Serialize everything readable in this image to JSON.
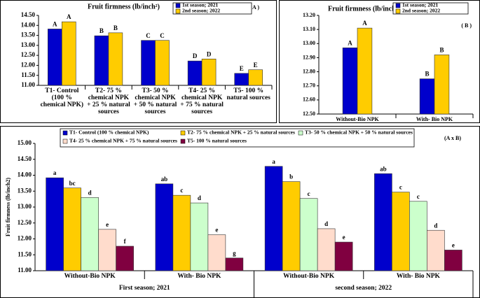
{
  "chart_data": [
    {
      "type": "bar",
      "title": "Fruit firmness (lb/inch²)",
      "panel_label": "( A )",
      "categories": [
        "T1- Control (100 % chemical NPK)",
        "T2- 75 % chemical NPK + 25 % natural sources",
        "T3- 50 % chemical NPK + 50 % natural sources",
        "T4- 25 % chemical NPK + 75 % natural sources",
        "T5- 100 % natural sources"
      ],
      "series": [
        {
          "name": "1st season; 2021",
          "color": "#0000cc",
          "values": [
            13.82,
            13.48,
            13.25,
            12.22,
            11.6
          ],
          "letters": [
            "A",
            "B",
            "C",
            "D",
            "E"
          ]
        },
        {
          "name": "2nd season; 2022",
          "color": "#ffcc00",
          "values": [
            14.18,
            13.63,
            13.25,
            12.32,
            11.78
          ],
          "letters": [
            "A",
            "B",
            "C",
            "D",
            "E"
          ]
        }
      ],
      "ylim": [
        11,
        14.5
      ],
      "yticks": [
        {
          "value": 11,
          "label": "11.00"
        },
        {
          "value": 11.5,
          "label": "11.50"
        },
        {
          "value": 12,
          "label": "12.00"
        },
        {
          "value": 12.5,
          "label": "12.50"
        },
        {
          "value": 13,
          "label": "13.00"
        },
        {
          "value": 13.5,
          "label": "13.50"
        },
        {
          "value": 14,
          "label": "14.00"
        },
        {
          "value": 14.5,
          "label": "14.50"
        }
      ]
    },
    {
      "type": "bar",
      "title": "Fruit firmness (lb/inch²)",
      "panel_label": "( B )",
      "categories": [
        "Without-Bio NPK",
        "With- Bio NPK"
      ],
      "series": [
        {
          "name": "1st season; 2021",
          "color": "#0000cc",
          "values": [
            12.97,
            12.75
          ],
          "letters": [
            "A",
            "B"
          ]
        },
        {
          "name": "2nd season; 2022",
          "color": "#ffcc00",
          "values": [
            13.11,
            12.92
          ],
          "letters": [
            "A",
            "B"
          ]
        }
      ],
      "ylim": [
        12.5,
        13.2
      ],
      "yticks": [
        {
          "value": 12.5,
          "label": "12.50"
        },
        {
          "value": 12.6,
          "label": "12.60"
        },
        {
          "value": 12.7,
          "label": "12.70"
        },
        {
          "value": 12.8,
          "label": "12.80"
        },
        {
          "value": 12.9,
          "label": "12.90"
        },
        {
          "value": 13,
          "label": "13.00"
        },
        {
          "value": 13.1,
          "label": "13.10"
        },
        {
          "value": 13.2,
          "label": "13.20"
        }
      ]
    },
    {
      "type": "bar",
      "panel_label": "(A x B)",
      "y_label": "Fruit firmness (lb/inch2)",
      "categories": [
        "Without-Bio NPK",
        "With- Bio NPK",
        "Without-Bio NPK",
        "With- Bio NPK"
      ],
      "groups": [
        "First season; 2021",
        "second season; 2022"
      ],
      "series": [
        {
          "name": "T1- Control (100 % chemical NPK)",
          "color": "#0000cc",
          "values": [
            13.92,
            13.73,
            14.28,
            14.05
          ],
          "letters": [
            "a",
            "ab",
            "a",
            "ab"
          ]
        },
        {
          "name": "T2- 75 % chemical NPK + 25 % natural sources",
          "color": "#ffcc00",
          "values": [
            13.6,
            13.37,
            13.8,
            13.47
          ],
          "letters": [
            "bc",
            "c",
            "b",
            "c"
          ]
        },
        {
          "name": "T3- 50 % chemical NPK + 50 % natural sources",
          "color": "#ccffcc",
          "values": [
            13.3,
            13.13,
            13.27,
            13.18
          ],
          "letters": [
            "d",
            "d",
            "c",
            "c"
          ]
        },
        {
          "name": "T4- 25 % chemical NPK + 75 % natural sources",
          "color": "#ffdccc",
          "values": [
            12.3,
            12.13,
            12.32,
            12.27
          ],
          "letters": [
            "e",
            "e",
            "d",
            "d"
          ]
        },
        {
          "name": "T5- 100 % natural sources",
          "color": "#800040",
          "values": [
            11.77,
            11.4,
            11.9,
            11.65
          ],
          "letters": [
            "f",
            "g",
            "e",
            "e"
          ]
        }
      ],
      "ylim": [
        11,
        15
      ],
      "yticks": [
        {
          "value": 11,
          "label": "11.00"
        },
        {
          "value": 11.5,
          "label": "11.50"
        },
        {
          "value": 12,
          "label": "12.00"
        },
        {
          "value": 12.5,
          "label": "12.50"
        },
        {
          "value": 13,
          "label": "13.00"
        },
        {
          "value": 13.5,
          "label": "13.50"
        },
        {
          "value": 14,
          "label": "14.00"
        },
        {
          "value": 14.5,
          "label": "14.50"
        },
        {
          "value": 15,
          "label": "15.00"
        }
      ]
    }
  ]
}
